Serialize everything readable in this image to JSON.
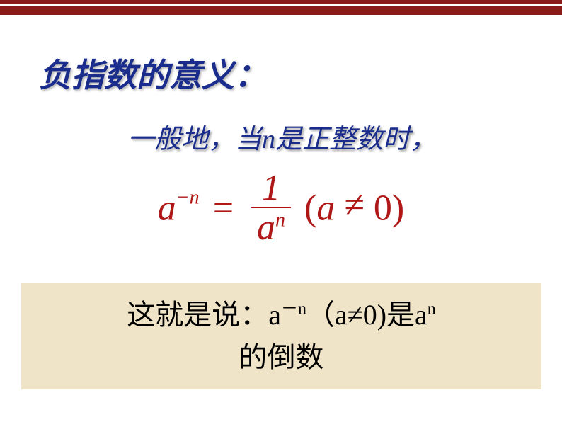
{
  "colors": {
    "border": "#8b1a1a",
    "title": "#1a2d8c",
    "formula": "#b01818",
    "box_bg": "#f0e4c8",
    "text": "#000000",
    "page_bg": "#ffffff"
  },
  "title": "负指数的意义：",
  "subtitle_parts": {
    "prefix": "一般地，当",
    "var": "n",
    "suffix": "是正整数时，"
  },
  "formula": {
    "base": "a",
    "exp_neg": "−n",
    "eq": "=",
    "numerator": "1",
    "den_base": "a",
    "den_exp": "n",
    "open": "(",
    "neq_base": "a",
    "neq": "≠",
    "zero": "0",
    "close": ")"
  },
  "explanation": {
    "prefix": "这就是说：",
    "a": "a",
    "neg_n": "－n",
    "open": "（",
    "a2": "a",
    "neq": "≠",
    "zero": "0",
    "close": ")",
    "is": "是",
    "a3": "a",
    "exp_n": "n",
    "line2": "的倒数"
  },
  "typography": {
    "title_fontsize": 46,
    "subtitle_fontsize": 38,
    "formula_fontsize": 52,
    "explanation_fontsize": 40
  }
}
